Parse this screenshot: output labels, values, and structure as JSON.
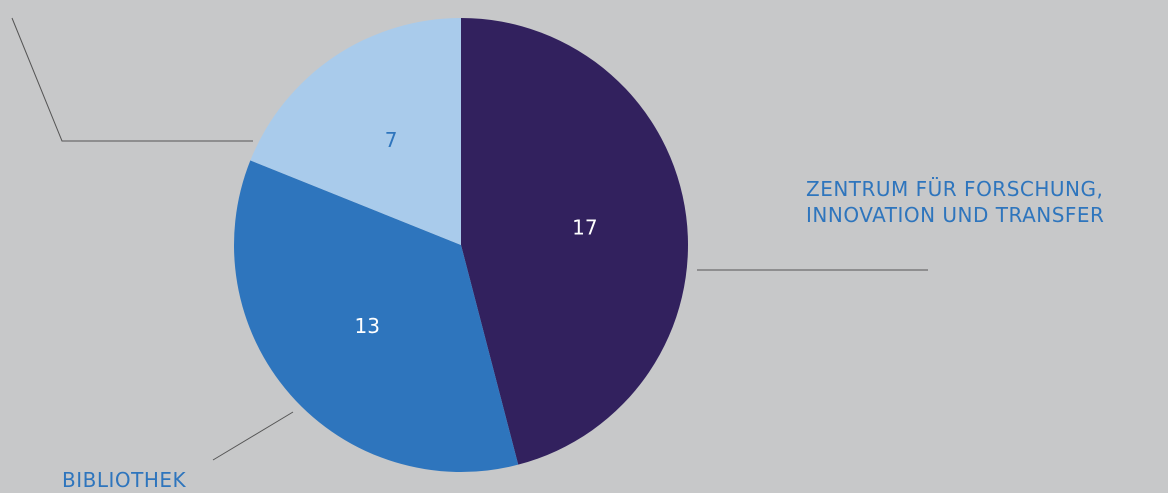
{
  "chart_data": {
    "type": "pie",
    "categories": [
      "ZENTRUM FÜR FORSCHUNG, INNOVATION UND TRANSFER",
      "BIBLIOTHEK",
      null
    ],
    "values": [
      17,
      13,
      7
    ],
    "colors": [
      "#32215e",
      "#2e75bd",
      "#a9cbeb"
    ]
  }
}
